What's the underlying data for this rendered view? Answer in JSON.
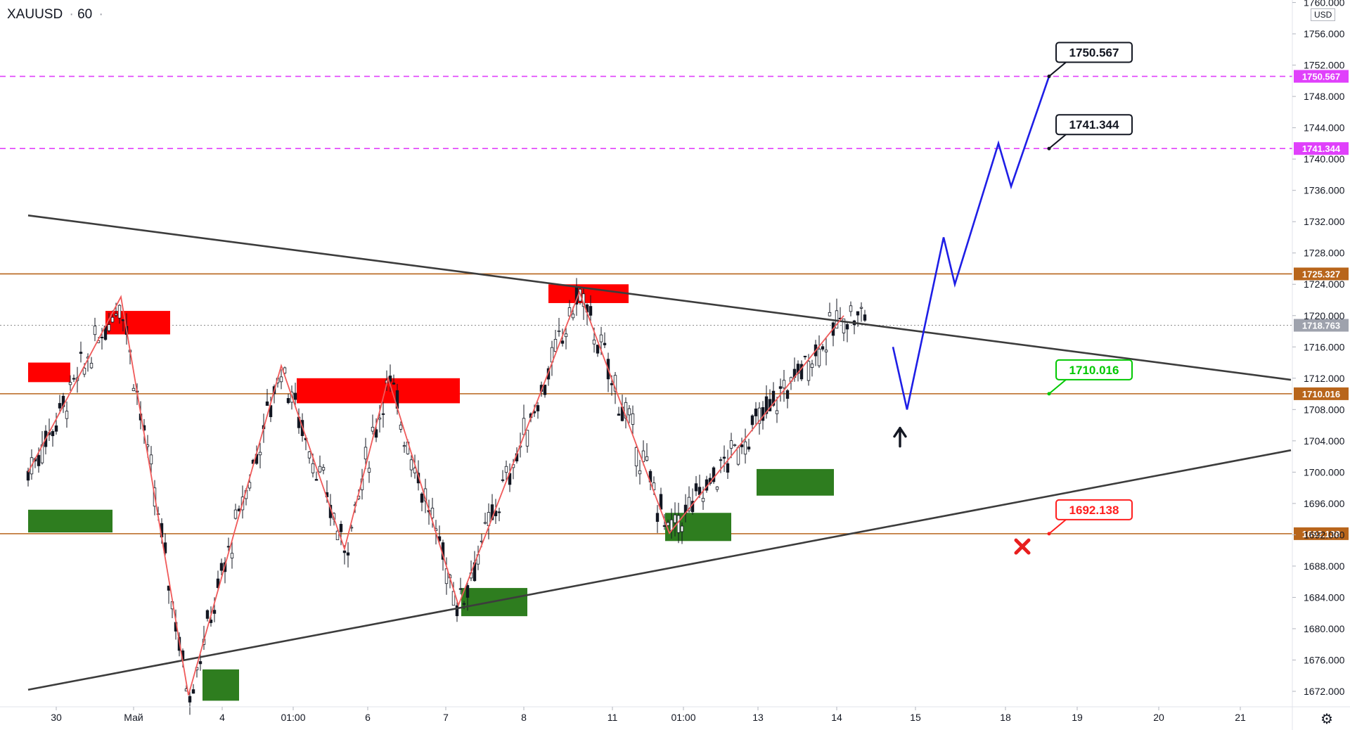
{
  "header": {
    "symbol": "XAUUSD",
    "interval": "60"
  },
  "axis": {
    "currency": "USD"
  },
  "chart_data": {
    "type": "candlestick",
    "y_ticks": [
      "1672.000",
      "1676.000",
      "1680.000",
      "1684.000",
      "1688.000",
      "1692.000",
      "1696.000",
      "1700.000",
      "1704.000",
      "1708.000",
      "1712.000",
      "1716.000",
      "1720.000",
      "1724.000",
      "1728.000",
      "1732.000",
      "1736.000",
      "1740.000",
      "1744.000",
      "1748.000",
      "1752.000",
      "1756.000",
      "1760.000"
    ],
    "x_ticks": [
      "30",
      "Май",
      "4",
      "01:00",
      "6",
      "7",
      "8",
      "11",
      "01:00",
      "13",
      "14",
      "15",
      "18",
      "19",
      "20",
      "21"
    ],
    "ylim": [
      1670,
      1761
    ],
    "price_levels": [
      {
        "label": "1750.567",
        "value": 1750.567,
        "color": "#e040fb",
        "style": "dashed"
      },
      {
        "label": "1741.344",
        "value": 1741.344,
        "color": "#e040fb",
        "style": "dashed"
      },
      {
        "label": "1725.327",
        "value": 1725.327,
        "color": "#b8651b",
        "style": "solid"
      },
      {
        "label": "1718.763",
        "value": 1718.763,
        "color": "#8c8c8c",
        "style": "dotted"
      },
      {
        "label": "1710.016",
        "value": 1710.016,
        "color": "#b8651b",
        "style": "solid"
      },
      {
        "label": "1692.138",
        "value": 1692.138,
        "color": "#b8651b",
        "style": "solid"
      }
    ],
    "callouts": [
      {
        "label": "1750.567",
        "color": "#131722"
      },
      {
        "label": "1741.344",
        "color": "#131722"
      },
      {
        "label": "1710.016",
        "color": "#00c800"
      },
      {
        "label": "1692.138",
        "color": "#ff1e1e"
      }
    ],
    "trendlines": [
      {
        "name": "upper",
        "from": [
          -2.0,
          1732.8
        ],
        "to": [
          87.8,
          1711.8
        ]
      },
      {
        "name": "lower",
        "from": [
          -2.0,
          1672.2
        ],
        "to": [
          87.8,
          1702.8
        ]
      }
    ],
    "zigzag": [
      [
        -2,
        1700
      ],
      [
        4.6,
        1722.4
      ],
      [
        9.4,
        1671.5
      ],
      [
        16.0,
        1713.6
      ],
      [
        20.5,
        1690.2
      ],
      [
        23.6,
        1712.0
      ],
      [
        28.6,
        1683.0
      ],
      [
        37.2,
        1723.0
      ],
      [
        43.6,
        1692.2
      ],
      [
        56.0,
        1720.0
      ]
    ],
    "projection": [
      [
        59.5,
        1716.0
      ],
      [
        60.5,
        1708.0
      ],
      [
        63.1,
        1730.0
      ],
      [
        63.9,
        1724.0
      ],
      [
        67.0,
        1742.0
      ],
      [
        67.9,
        1736.5
      ],
      [
        70.6,
        1750.567
      ]
    ],
    "supply_zones": [
      [
        -2,
        1,
        1714.0,
        1711.5
      ],
      [
        3.5,
        8.1,
        1720.6,
        1717.6
      ],
      [
        17.1,
        28.7,
        1712.0,
        1708.8
      ],
      [
        35.0,
        40.7,
        1724.0,
        1721.6
      ]
    ],
    "demand_zones": [
      [
        -2,
        4.0,
        1695.2,
        1692.3
      ],
      [
        10.4,
        13.0,
        1674.8,
        1670.8
      ],
      [
        28.8,
        33.5,
        1685.2,
        1681.6
      ],
      [
        43.3,
        48.0,
        1694.8,
        1691.2
      ],
      [
        49.8,
        55.3,
        1700.4,
        1697.0
      ]
    ]
  }
}
